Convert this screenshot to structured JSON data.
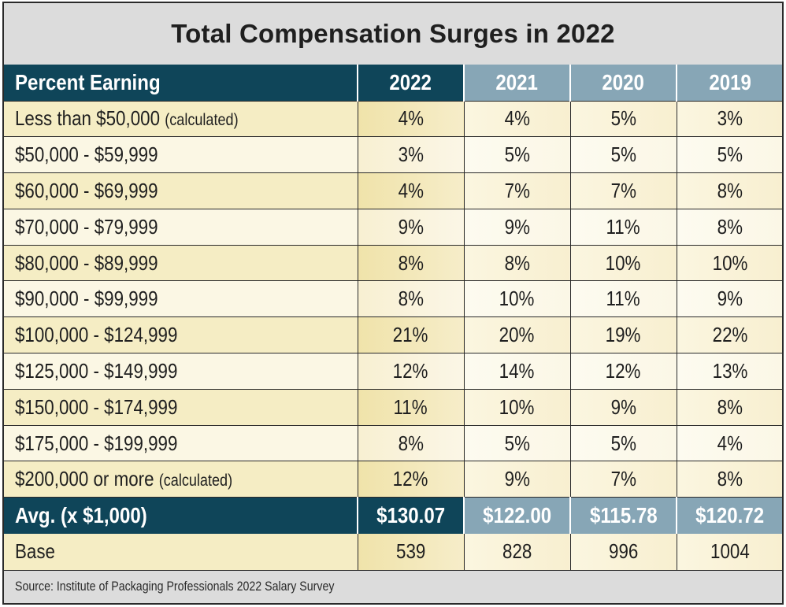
{
  "title": "Total Compensation Surges in 2022",
  "header": {
    "label": "Percent Earning",
    "years": [
      "2022",
      "2021",
      "2020",
      "2019"
    ]
  },
  "rows": [
    {
      "label": "Less than $50,000",
      "note": "(calculated)",
      "values": [
        "4%",
        "4%",
        "5%",
        "3%"
      ]
    },
    {
      "label": "$50,000 - $59,999",
      "note": "",
      "values": [
        "3%",
        "5%",
        "5%",
        "5%"
      ]
    },
    {
      "label": "$60,000 - $69,999",
      "note": "",
      "values": [
        "4%",
        "7%",
        "7%",
        "8%"
      ]
    },
    {
      "label": "$70,000 - $79,999",
      "note": "",
      "values": [
        "9%",
        "9%",
        "11%",
        "8%"
      ]
    },
    {
      "label": "$80,000 - $89,999",
      "note": "",
      "values": [
        "8%",
        "8%",
        "10%",
        "10%"
      ]
    },
    {
      "label": "$90,000 - $99,999",
      "note": "",
      "values": [
        "8%",
        "10%",
        "11%",
        "9%"
      ]
    },
    {
      "label": "$100,000 - $124,999",
      "note": "",
      "values": [
        "21%",
        "20%",
        "19%",
        "22%"
      ]
    },
    {
      "label": "$125,000 - $149,999",
      "note": "",
      "values": [
        "12%",
        "14%",
        "12%",
        "13%"
      ]
    },
    {
      "label": "$150,000 - $174,999",
      "note": "",
      "values": [
        "11%",
        "10%",
        "9%",
        "8%"
      ]
    },
    {
      "label": "$175,000 - $199,999",
      "note": "",
      "values": [
        "8%",
        "5%",
        "5%",
        "4%"
      ]
    },
    {
      "label": "$200,000 or more",
      "note": "(calculated)",
      "values": [
        "12%",
        "9%",
        "7%",
        "8%"
      ]
    }
  ],
  "average": {
    "label": "Avg. (x $1,000)",
    "values": [
      "$130.07",
      "$122.00",
      "$115.78",
      "$120.72"
    ]
  },
  "base": {
    "label": "Base",
    "values": [
      "539",
      "828",
      "996",
      "1004"
    ]
  },
  "source": "Source: Institute of Packaging Professionals 2022 Salary Survey",
  "colors": {
    "header_dark": "#0f4559",
    "header_light": "#87a6b6",
    "row_highlight": "#f5edc4",
    "title_bg": "#dcdcdc"
  }
}
